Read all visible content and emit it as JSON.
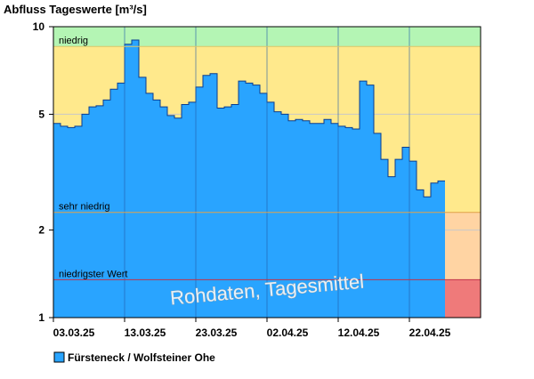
{
  "chart_data": {
    "type": "area",
    "title": "Abfluss Tageswerte [m³/s]",
    "y_scale": "log",
    "ylim": [
      1,
      10
    ],
    "y_ticks": [
      {
        "value": 10,
        "label": "10"
      },
      {
        "value": 5,
        "label": "5"
      },
      {
        "value": 2,
        "label": "2"
      },
      {
        "value": 1,
        "label": "1"
      }
    ],
    "x_tick_labels": [
      "03.03.25",
      "13.03.25",
      "23.03.25",
      "02.04.25",
      "12.04.25",
      "22.04.25"
    ],
    "x_tick_day_index": [
      0,
      10,
      20,
      30,
      40,
      50
    ],
    "series": [
      {
        "name": "Fürsteneck / Wolfsteiner Ohe",
        "color": "#29a4ff",
        "start_date": "03.03.25",
        "values": [
          4.65,
          4.55,
          4.5,
          4.55,
          5.0,
          5.3,
          5.35,
          5.6,
          6.1,
          6.4,
          8.7,
          9.0,
          6.7,
          5.9,
          5.6,
          5.3,
          4.95,
          4.85,
          5.4,
          5.5,
          6.2,
          6.8,
          6.9,
          5.25,
          5.3,
          5.4,
          6.5,
          6.4,
          6.3,
          5.9,
          5.5,
          5.1,
          5.0,
          4.75,
          4.8,
          4.75,
          4.65,
          4.65,
          4.8,
          4.65,
          4.55,
          4.5,
          4.45,
          6.5,
          6.3,
          4.3,
          3.5,
          3.05,
          3.5,
          3.85,
          3.45,
          2.75,
          2.6,
          2.9,
          2.95
        ]
      }
    ],
    "zones": [
      {
        "label": "niedrig",
        "threshold": 8.55,
        "color": "#ffe98c"
      },
      {
        "label": "sehr niedrig",
        "threshold": 2.3,
        "color": "#ffd4a3"
      },
      {
        "label": "niedrigster Wert",
        "threshold": 1.35,
        "color": "#ef7a7a"
      }
    ],
    "zone_above_color": "#b4f5b4",
    "watermark": "Rohdaten, Tagesmittel",
    "legend": [
      {
        "label": "Fürsteneck / Wolfsteiner Ohe",
        "color": "#29a4ff"
      }
    ]
  }
}
